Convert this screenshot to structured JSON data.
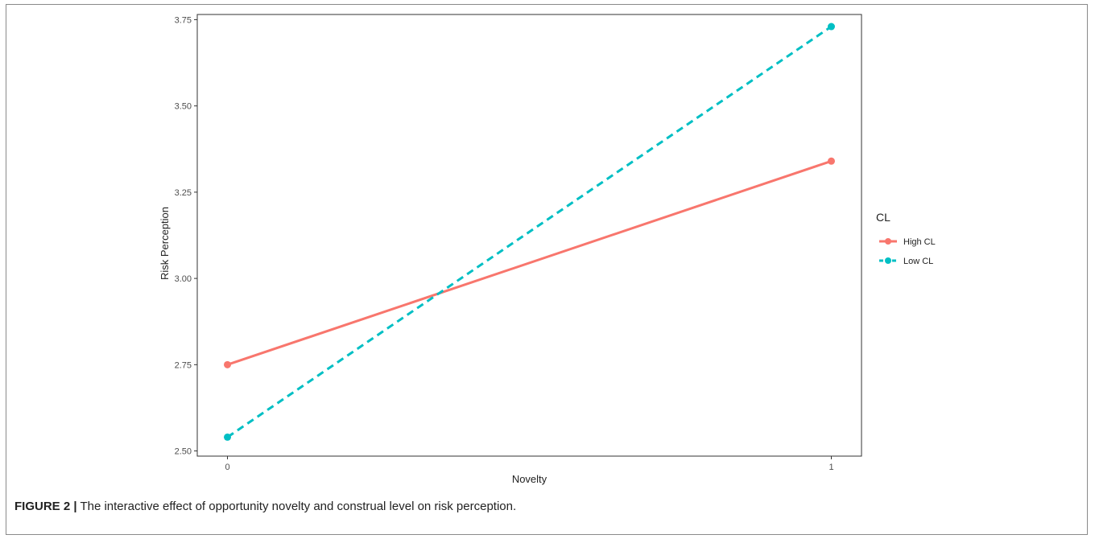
{
  "figure": {
    "caption_label": "FIGURE 2 |",
    "caption_text": " The interactive effect of opportunity novelty and construal level on risk perception."
  },
  "chart_data": {
    "type": "line",
    "title": "",
    "xlabel": "Novelty",
    "ylabel": "Risk Perception",
    "x": [
      0,
      1
    ],
    "x_ticks": [
      "0",
      "1"
    ],
    "ylim": [
      2.5,
      3.75
    ],
    "y_ticks": [
      "2.50",
      "2.75",
      "3.00",
      "3.25",
      "3.50",
      "3.75"
    ],
    "grid": false,
    "legend": {
      "title": "CL",
      "placement": "right"
    },
    "series": [
      {
        "name": "High CL",
        "values": [
          2.75,
          3.34
        ],
        "color": "#F8766D",
        "linestyle": "solid"
      },
      {
        "name": "Low CL",
        "values": [
          2.54,
          3.73
        ],
        "color": "#00BFC4",
        "linestyle": "dashed"
      }
    ]
  }
}
